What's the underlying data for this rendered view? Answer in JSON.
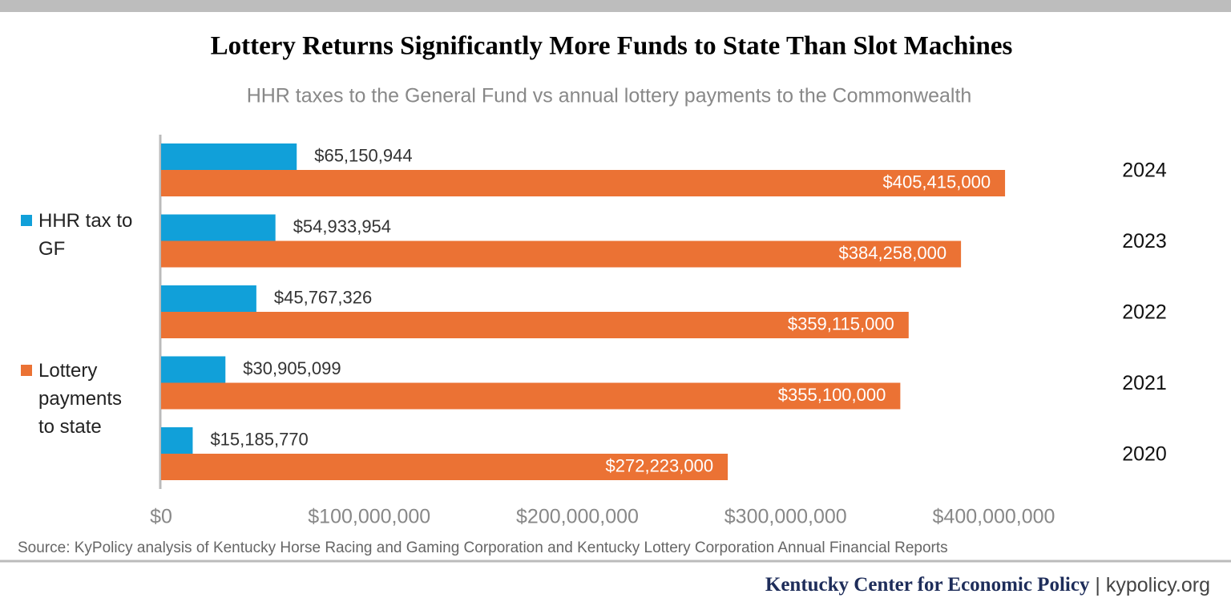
{
  "chart_data": {
    "type": "hbar",
    "title": "Lottery Returns Significantly More Funds to State Than Slot Machines",
    "subtitle": "HHR taxes to the General Fund vs annual lottery payments to the Commonwealth",
    "source": "Source: KyPolicy analysis of Kentucky Horse Racing and Gaming Corporation and Kentucky Lottery Corporation Annual Financial Reports",
    "categories": [
      "2024",
      "2023",
      "2022",
      "2021",
      "2020"
    ],
    "series": [
      {
        "name": "HHR tax to GF",
        "color": "#11a0d9",
        "values": [
          65150944,
          54933954,
          45767326,
          30905099,
          15185770
        ],
        "value_labels": [
          "$65,150,944",
          "$54,933,954",
          "$45,767,326",
          "$30,905,099",
          "$15,185,770"
        ]
      },
      {
        "name": "Lottery payments to state",
        "color": "#eb7234",
        "values": [
          405415000,
          384258000,
          359115000,
          355100000,
          272223000
        ],
        "value_labels": [
          "$405,415,000",
          "$384,258,000",
          "$359,115,000",
          "$355,100,000",
          "$272,223,000"
        ]
      }
    ],
    "xlim": [
      0,
      400000000
    ],
    "xticks": [
      {
        "value": 0,
        "label": "$0"
      },
      {
        "value": 100000000,
        "label": "$100,000,000"
      },
      {
        "value": 200000000,
        "label": "$200,000,000"
      },
      {
        "value": 300000000,
        "label": "$300,000,000"
      },
      {
        "value": 400000000,
        "label": "$400,000,000"
      }
    ],
    "grid": false,
    "legend": "left"
  },
  "branding": {
    "name": "Kentucky Center for Economic Policy",
    "separator": "|",
    "url": "kypolicy.org"
  }
}
